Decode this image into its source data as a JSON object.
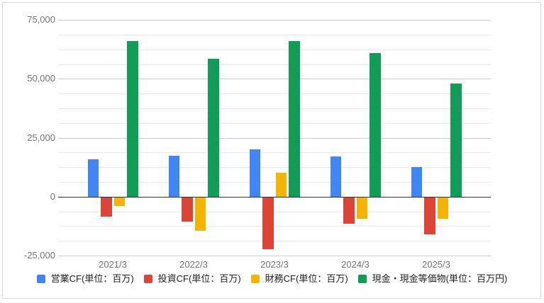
{
  "chart_data": {
    "type": "bar",
    "title": "",
    "xlabel": "",
    "ylabel": "",
    "categories": [
      "2021/3",
      "2022/3",
      "2023/3",
      "2024/3",
      "2025/3"
    ],
    "series": [
      {
        "name": "営業CF(単位：百万)",
        "color": "#4285F4",
        "values": [
          16000,
          17500,
          20000,
          17000,
          12500
        ]
      },
      {
        "name": "投資CF(単位：百万)",
        "color": "#DB4437",
        "values": [
          -8500,
          -10500,
          -22500,
          -11500,
          -16000
        ]
      },
      {
        "name": "財務CF(単位：百万)",
        "color": "#F4B400",
        "values": [
          -4000,
          -14500,
          10000,
          -9500,
          -9500
        ]
      },
      {
        "name": "現金・現金等価物(単位：百万円)",
        "color": "#0F9D58",
        "values": [
          66000,
          58500,
          66000,
          61000,
          48000
        ]
      }
    ],
    "ylim": [
      -25000,
      75000
    ],
    "y_ticks": [
      {
        "value": 75000,
        "label": "75,000"
      },
      {
        "value": 50000,
        "label": "50,000"
      },
      {
        "value": 25000,
        "label": "25,000"
      },
      {
        "value": 0,
        "label": "0"
      },
      {
        "value": -25000,
        "label": "-25,000"
      }
    ],
    "minor_gridline_step": 6250,
    "grid": true,
    "legend_position": "bottom",
    "colors": {
      "axis_text": "#757575",
      "legend_text": "#222222",
      "major_gridline": "#cccccc",
      "minor_gridline": "#ebebeb",
      "zero_line": "#333333",
      "frame_border": "#dadada",
      "background": "#ffffff"
    }
  }
}
